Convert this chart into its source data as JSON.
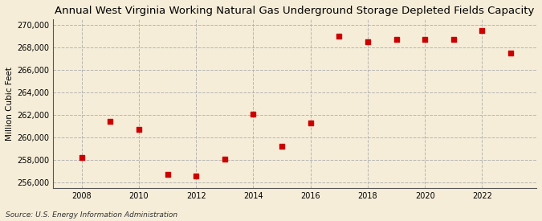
{
  "title": "Annual West Virginia Working Natural Gas Underground Storage Depleted Fields Capacity",
  "ylabel": "Million Cubic Feet",
  "source": "Source: U.S. Energy Information Administration",
  "background_color": "#f5edd8",
  "plot_bg_color": "#f5edd8",
  "years": [
    2008,
    2009,
    2010,
    2011,
    2012,
    2013,
    2014,
    2015,
    2016,
    2017,
    2018,
    2019,
    2020,
    2021,
    2022,
    2023
  ],
  "values": [
    258200,
    261400,
    260700,
    256700,
    256600,
    258100,
    262100,
    259200,
    261300,
    269000,
    268500,
    268700,
    268700,
    268700,
    269500,
    267500
  ],
  "marker_color": "#cc0000",
  "marker_size": 18,
  "ylim_bottom": 255500,
  "ylim_top": 270500,
  "yticks": [
    256000,
    258000,
    260000,
    262000,
    264000,
    266000,
    268000,
    270000
  ],
  "xticks": [
    2008,
    2010,
    2012,
    2014,
    2016,
    2018,
    2020,
    2022
  ],
  "grid_color": "#b0b0b0",
  "title_fontsize": 9.5,
  "label_fontsize": 7.5,
  "tick_fontsize": 7,
  "source_fontsize": 6.5
}
